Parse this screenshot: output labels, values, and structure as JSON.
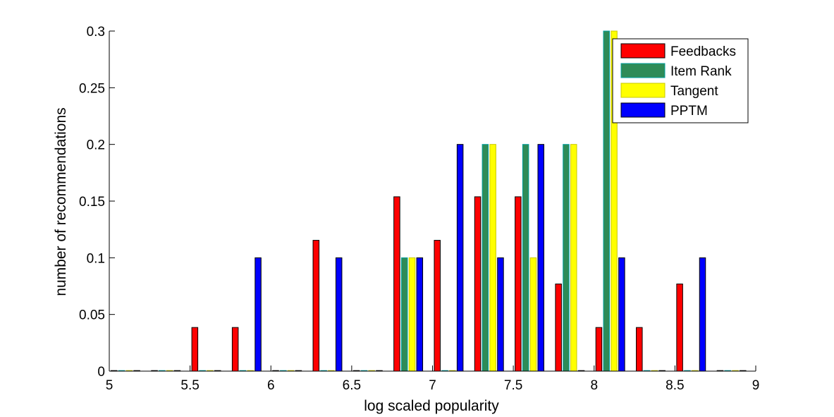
{
  "chart_data": {
    "type": "bar",
    "xlabel": "log scaled popularity",
    "ylabel": "number of recommendations",
    "xlim": [
      5,
      9
    ],
    "ylim": [
      0,
      0.3
    ],
    "xticks": [
      5,
      5.5,
      6,
      6.5,
      7,
      7.5,
      8,
      8.5,
      9
    ],
    "xtick_labels": [
      "5",
      "5.5",
      "6",
      "6.5",
      "7",
      "7.5",
      "8",
      "8.5",
      "9"
    ],
    "yticks": [
      0,
      0.05,
      0.1,
      0.15,
      0.2,
      0.25,
      0.3
    ],
    "ytick_labels": [
      "0",
      "0.05",
      "0.1",
      "0.15",
      "0.2",
      "0.25",
      "0.3"
    ],
    "grid": false,
    "legend_position": "top-right",
    "series": [
      {
        "name": "Feedbacks",
        "color": "#ff0000",
        "edge": "#000000",
        "x": [
          5.1,
          5.35,
          5.6,
          5.85,
          6.1,
          6.35,
          6.6,
          6.85,
          7.1,
          7.35,
          7.6,
          7.85,
          8.1,
          8.35,
          8.6,
          8.85
        ],
        "values": [
          0,
          0,
          0.0385,
          0.0385,
          0,
          0.1154,
          0,
          0.1538,
          0.1154,
          0.1538,
          0.1538,
          0.0769,
          0.0385,
          0.0385,
          0.0769,
          0
        ]
      },
      {
        "name": "Item Rank",
        "color": "#2e8b57",
        "edge": "#00a0a0",
        "x": [
          5.1,
          5.35,
          5.6,
          5.85,
          6.1,
          6.35,
          6.6,
          6.85,
          7.1,
          7.35,
          7.6,
          7.85,
          8.1,
          8.35,
          8.6,
          8.85
        ],
        "values": [
          0,
          0,
          0,
          0,
          0,
          0,
          0,
          0.1,
          0,
          0.2,
          0.2,
          0.2,
          0.3,
          0,
          0,
          0
        ]
      },
      {
        "name": "Tangent",
        "color": "#ffff00",
        "edge": "#c8c800",
        "x": [
          5.1,
          5.35,
          5.6,
          5.85,
          6.1,
          6.35,
          6.6,
          6.85,
          7.1,
          7.35,
          7.6,
          7.85,
          8.1,
          8.35,
          8.6,
          8.85
        ],
        "values": [
          0,
          0,
          0,
          0,
          0,
          0,
          0,
          0.1,
          0,
          0.2,
          0.1,
          0.2,
          0.3,
          0,
          0,
          0
        ]
      },
      {
        "name": "PPTM",
        "color": "#0000ff",
        "edge": "#000000",
        "x": [
          5.1,
          5.35,
          5.6,
          5.85,
          6.1,
          6.35,
          6.6,
          6.85,
          7.1,
          7.35,
          7.6,
          7.85,
          8.1,
          8.35,
          8.6,
          8.85
        ],
        "values": [
          0,
          0,
          0,
          0.1,
          0,
          0.1,
          0,
          0.1,
          0.2,
          0.1,
          0.2,
          0,
          0.1,
          0,
          0.1,
          0
        ]
      }
    ]
  }
}
